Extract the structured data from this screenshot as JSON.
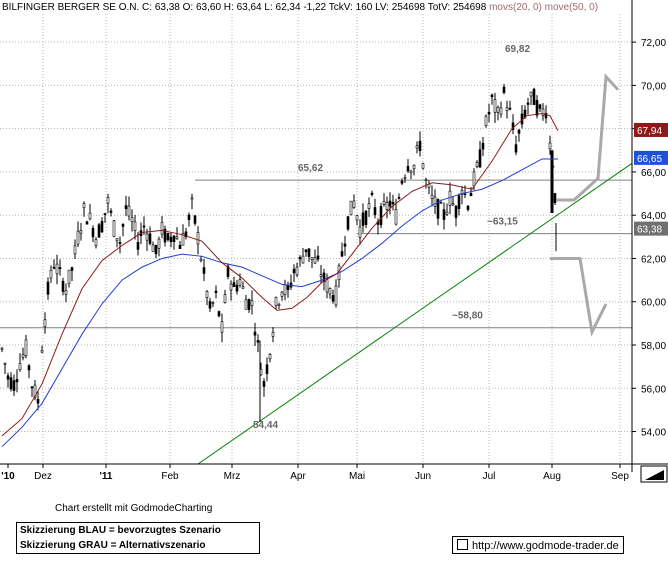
{
  "header": {
    "name": "BILFINGER BERGER SE O.N.",
    "c_label": "C:",
    "c_value": "63,38",
    "o_label": "O:",
    "o_value": "63,60",
    "h_label": "H:",
    "h_value": "63,64",
    "l_label": "L:",
    "l_value": "62,34",
    "chg_value": "-1,22",
    "tick_label": "TckV:",
    "tick_value": "160",
    "lv_label": "LV:",
    "lv_value": "254698",
    "totv_label": "TotV:",
    "totv_value": "254698",
    "ma_text": "movs(20, 0) move(50, 0)"
  },
  "footer": {
    "credit": "Chart erstellt mit GodmodeCharting",
    "legend_line1": "Skizzierung BLAU = bevorzugtes Szenario",
    "legend_line2": "Skizzierung GRAU = Alternativszenario",
    "url": "http://www.godmode-trader.de"
  },
  "colors": {
    "candle": "#000000",
    "ma_short": "#8b1a1a",
    "ma_long": "#1f3fd0",
    "trendline": "#008000",
    "levels": "#808080",
    "scenario": "#a9a9a9",
    "grid": "#b5b5b5",
    "price_badge_ma_short": "#8b1a1a",
    "price_badge_ma_long": "#1f50d8",
    "price_badge_last": "#707070"
  },
  "chart_data": {
    "type": "candlestick",
    "title": "BILFINGER BERGER SE O.N.",
    "ylim": [
      52.5,
      73.3
    ],
    "y_ticks": [
      "54,00",
      "56,00",
      "58,00",
      "60,00",
      "62,00",
      "64,00",
      "66,00",
      "68,00",
      "70,00",
      "72,00"
    ],
    "x_ticks": [
      "'10",
      "Dez",
      "'11",
      "Feb",
      "Mrz",
      "Apr",
      "Mai",
      "Jun",
      "Jul",
      "Aug",
      "Sep"
    ],
    "grid": true,
    "levels": [
      {
        "label": "65,62",
        "value": 65.62
      },
      {
        "label": "~63,15",
        "value": 63.15
      },
      {
        "label": "~58,80",
        "value": 58.8
      }
    ],
    "annotations": [
      {
        "label": "69,82",
        "value": 69.82
      },
      {
        "label": "54,44",
        "value": 54.44
      }
    ],
    "price_badges": [
      {
        "label": "67,94",
        "value": 67.94,
        "series": "movs(20, 0)"
      },
      {
        "label": "66,65",
        "value": 66.65,
        "series": "move(50, 0)"
      },
      {
        "label": "63,38",
        "value": 63.38,
        "series": "close"
      }
    ],
    "trendline": {
      "from": {
        "x": "Feb",
        "y": 52.5
      },
      "to": {
        "x": "Sep",
        "y": 66.4
      }
    },
    "scenarios": [
      {
        "name": "grey-up",
        "points": [
          [
            64.7
          ],
          [
            64.7
          ],
          [
            65.7
          ],
          [
            70.4
          ],
          [
            69.8
          ]
        ]
      },
      {
        "name": "grey-down",
        "points": [
          [
            62.0
          ],
          [
            62.0
          ],
          [
            58.6
          ],
          [
            59.9
          ]
        ]
      }
    ],
    "price_path": [
      [
        0,
        57.8
      ],
      [
        6,
        56.5
      ],
      [
        12,
        56.2
      ],
      [
        18,
        57.2
      ],
      [
        24,
        57.8
      ],
      [
        30,
        56.2
      ],
      [
        36,
        55.4
      ],
      [
        40,
        58.0
      ],
      [
        46,
        60.5
      ],
      [
        52,
        61.8
      ],
      [
        58,
        61.2
      ],
      [
        64,
        60.6
      ],
      [
        70,
        61.5
      ],
      [
        76,
        63.0
      ],
      [
        82,
        64.2
      ],
      [
        88,
        63.8
      ],
      [
        94,
        63.0
      ],
      [
        100,
        63.6
      ],
      [
        106,
        64.6
      ],
      [
        112,
        63.4
      ],
      [
        118,
        62.8
      ],
      [
        124,
        64.3
      ],
      [
        130,
        63.7
      ],
      [
        136,
        62.8
      ],
      [
        142,
        63.5
      ],
      [
        148,
        63.0
      ],
      [
        154,
        62.2
      ],
      [
        160,
        63.3
      ],
      [
        166,
        62.8
      ],
      [
        172,
        63.2
      ],
      [
        178,
        62.7
      ],
      [
        184,
        63.2
      ],
      [
        190,
        64.4
      ],
      [
        196,
        63.0
      ],
      [
        202,
        61.2
      ],
      [
        208,
        59.6
      ],
      [
        214,
        60.2
      ],
      [
        220,
        58.7
      ],
      [
        226,
        61.3
      ],
      [
        232,
        60.6
      ],
      [
        238,
        61.0
      ],
      [
        244,
        60.1
      ],
      [
        250,
        59.9
      ],
      [
        256,
        57.9
      ],
      [
        262,
        56.2
      ],
      [
        268,
        57.8
      ],
      [
        274,
        59.8
      ],
      [
        280,
        60.6
      ],
      [
        286,
        60.4
      ],
      [
        292,
        61.4
      ],
      [
        298,
        61.8
      ],
      [
        304,
        62.5
      ],
      [
        310,
        62.0
      ],
      [
        316,
        61.7
      ],
      [
        322,
        61.0
      ],
      [
        328,
        60.5
      ],
      [
        334,
        60.3
      ],
      [
        340,
        62.2
      ],
      [
        346,
        63.8
      ],
      [
        352,
        64.6
      ],
      [
        358,
        63.4
      ],
      [
        364,
        64.0
      ],
      [
        370,
        64.6
      ],
      [
        376,
        63.8
      ],
      [
        382,
        64.2
      ],
      [
        388,
        64.6
      ],
      [
        394,
        64.0
      ],
      [
        400,
        65.7
      ],
      [
        406,
        66.4
      ],
      [
        412,
        66.3
      ],
      [
        418,
        67.3
      ],
      [
        424,
        65.5
      ],
      [
        430,
        64.7
      ],
      [
        436,
        64.3
      ],
      [
        442,
        64.0
      ],
      [
        448,
        64.8
      ],
      [
        454,
        64.2
      ],
      [
        460,
        65.3
      ],
      [
        466,
        64.6
      ],
      [
        472,
        65.6
      ],
      [
        478,
        66.6
      ],
      [
        484,
        68.2
      ],
      [
        490,
        69.3
      ],
      [
        496,
        68.6
      ],
      [
        502,
        69.6
      ],
      [
        508,
        68.7
      ],
      [
        514,
        67.2
      ],
      [
        520,
        68.3
      ],
      [
        526,
        69.2
      ],
      [
        532,
        69.4
      ],
      [
        538,
        68.7
      ],
      [
        544,
        68.9
      ],
      [
        548,
        67.3
      ],
      [
        551,
        66.5
      ],
      [
        553,
        64.9
      ],
      [
        556,
        63.4
      ]
    ],
    "ma_short_path": [
      [
        0,
        53.8
      ],
      [
        20,
        54.6
      ],
      [
        40,
        56.2
      ],
      [
        60,
        58.5
      ],
      [
        80,
        60.6
      ],
      [
        100,
        61.9
      ],
      [
        120,
        62.6
      ],
      [
        140,
        63.2
      ],
      [
        160,
        63.3
      ],
      [
        180,
        63.1
      ],
      [
        200,
        62.8
      ],
      [
        220,
        61.8
      ],
      [
        240,
        61.1
      ],
      [
        260,
        60.2
      ],
      [
        275,
        59.6
      ],
      [
        290,
        59.7
      ],
      [
        305,
        60.2
      ],
      [
        320,
        60.9
      ],
      [
        335,
        61.3
      ],
      [
        350,
        62.2
      ],
      [
        370,
        63.4
      ],
      [
        390,
        64.4
      ],
      [
        410,
        65.1
      ],
      [
        430,
        65.5
      ],
      [
        450,
        65.4
      ],
      [
        470,
        65.2
      ],
      [
        490,
        66.5
      ],
      [
        510,
        68.0
      ],
      [
        525,
        68.6
      ],
      [
        540,
        68.7
      ],
      [
        548,
        68.6
      ],
      [
        556,
        67.9
      ]
    ],
    "ma_long_path": [
      [
        0,
        53.3
      ],
      [
        20,
        54.2
      ],
      [
        40,
        55.3
      ],
      [
        60,
        56.9
      ],
      [
        80,
        58.5
      ],
      [
        100,
        59.9
      ],
      [
        120,
        61.0
      ],
      [
        140,
        61.6
      ],
      [
        160,
        62.0
      ],
      [
        180,
        62.2
      ],
      [
        200,
        62.1
      ],
      [
        220,
        61.8
      ],
      [
        240,
        61.6
      ],
      [
        260,
        61.2
      ],
      [
        280,
        60.8
      ],
      [
        300,
        60.7
      ],
      [
        320,
        61.0
      ],
      [
        340,
        61.4
      ],
      [
        360,
        62.0
      ],
      [
        380,
        62.7
      ],
      [
        400,
        63.5
      ],
      [
        420,
        64.2
      ],
      [
        440,
        64.7
      ],
      [
        460,
        65.0
      ],
      [
        480,
        65.2
      ],
      [
        500,
        65.6
      ],
      [
        520,
        66.1
      ],
      [
        540,
        66.6
      ],
      [
        556,
        66.6
      ]
    ]
  }
}
